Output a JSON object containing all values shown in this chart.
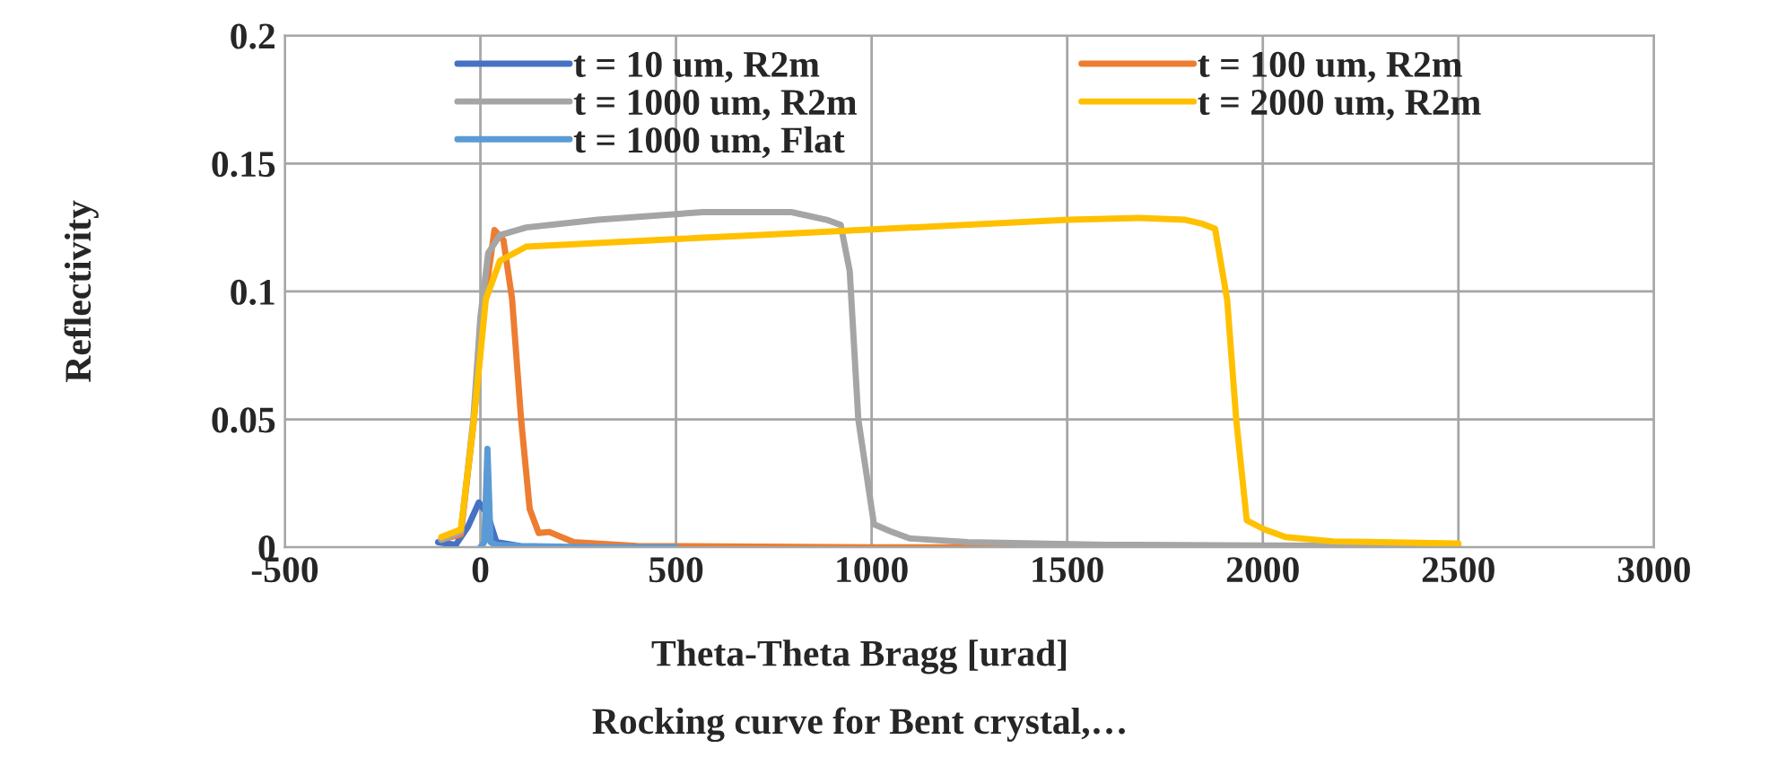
{
  "chart_data": {
    "type": "line",
    "xlabel": "Theta-Theta Bragg [urad]",
    "title": "Rocking curve for Bent crystal,…",
    "ylabel": "Reflectivity",
    "xlim": [
      -500,
      3000
    ],
    "xticks": [
      -500,
      0,
      500,
      1000,
      1500,
      2000,
      2500,
      3000
    ],
    "ylim": [
      0,
      0.2
    ],
    "yticks": [
      0,
      0.05,
      0.1,
      0.15,
      0.2
    ],
    "grid": true,
    "legend": "top",
    "marker": "none",
    "line_style": "solid",
    "series": [
      {
        "name": "t = 10 um, R2m",
        "color": "#4472c4",
        "x": [
          -108,
          -63,
          -32,
          -4,
          18,
          41,
          100
        ],
        "values": [
          0.002,
          0.001,
          0.008,
          0.0175,
          0.013,
          0.002,
          0.0005
        ]
      },
      {
        "name": "t = 100 um, R2m",
        "color": "#ed7d31",
        "x": [
          -100,
          -50,
          -18,
          14,
          36,
          59,
          81,
          104,
          126,
          149,
          176,
          239,
          400,
          1000,
          1500,
          2000,
          2500
        ],
        "values": [
          0.003,
          0.005,
          0.048,
          0.1,
          0.124,
          0.12,
          0.097,
          0.05,
          0.015,
          0.0056,
          0.006,
          0.002,
          0.0005,
          0,
          0,
          0,
          0
        ]
      },
      {
        "name": "t = 1000 um, R2m",
        "color": "#a5a5a5",
        "x": [
          -100,
          -50,
          -18,
          0,
          20,
          50,
          117,
          300,
          569,
          795,
          885,
          921,
          944,
          966,
          1006,
          1052,
          1097,
          1246,
          1600,
          2000,
          2500
        ],
        "values": [
          0.003,
          0.006,
          0.05,
          0.09,
          0.115,
          0.122,
          0.125,
          0.128,
          0.131,
          0.131,
          0.128,
          0.126,
          0.108,
          0.05,
          0.009,
          0.006,
          0.0035,
          0.002,
          0.001,
          0.0007,
          0.0005
        ]
      },
      {
        "name": "t = 2000 um, R2m",
        "color": "#ffc000",
        "x": [
          -100,
          -50,
          -18,
          14,
          50,
          117,
          569,
          704,
          1503,
          1684,
          1802,
          1842,
          1878,
          1909,
          1932,
          1959,
          2004,
          2058,
          2180,
          2500
        ],
        "values": [
          0.004,
          0.007,
          0.048,
          0.097,
          0.112,
          0.1175,
          0.121,
          0.122,
          0.128,
          0.1287,
          0.128,
          0.1266,
          0.1245,
          0.0966,
          0.05,
          0.0105,
          0.007,
          0.004,
          0.0023,
          0.0015
        ]
      },
      {
        "name": "t = 1000 um, Flat",
        "color": "#5b9bd5",
        "x": [
          0,
          10,
          14,
          18,
          22,
          26,
          40,
          100,
          300,
          500
        ],
        "values": [
          0,
          0.002,
          0.02,
          0.0385,
          0.02,
          0.002,
          0.001,
          0.0005,
          0,
          0
        ]
      }
    ]
  }
}
